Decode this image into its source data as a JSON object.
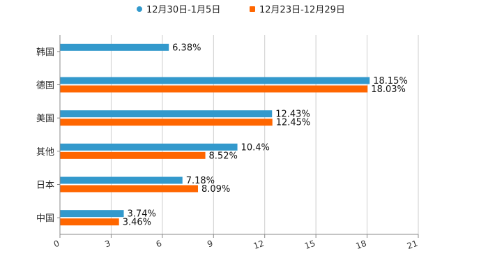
{
  "chart_data": {
    "type": "bar",
    "orientation": "horizontal",
    "categories": [
      "韩国",
      "德国",
      "美国",
      "其他",
      "日本",
      "中国"
    ],
    "series": [
      {
        "name": "12月30日-1月5日",
        "color": "#3399cc",
        "values": [
          6.38,
          18.15,
          12.43,
          10.4,
          7.18,
          3.74
        ],
        "labels": [
          "6.38%",
          "18.15%",
          "12.43%",
          "10.4%",
          "7.18%",
          "3.74%"
        ]
      },
      {
        "name": "12月23日-12月29日",
        "color": "#ff6600",
        "values": [
          null,
          18.03,
          12.45,
          8.52,
          8.09,
          3.46
        ],
        "labels": [
          "",
          "18.03%",
          "12.45%",
          "8.52%",
          "8.09%",
          "3.46%"
        ]
      }
    ],
    "xlim": [
      0,
      21
    ],
    "xticks": [
      "0",
      "3",
      "6",
      "9",
      "12",
      "15",
      "18",
      "21"
    ],
    "grid": true,
    "legend_position": "top-center"
  }
}
